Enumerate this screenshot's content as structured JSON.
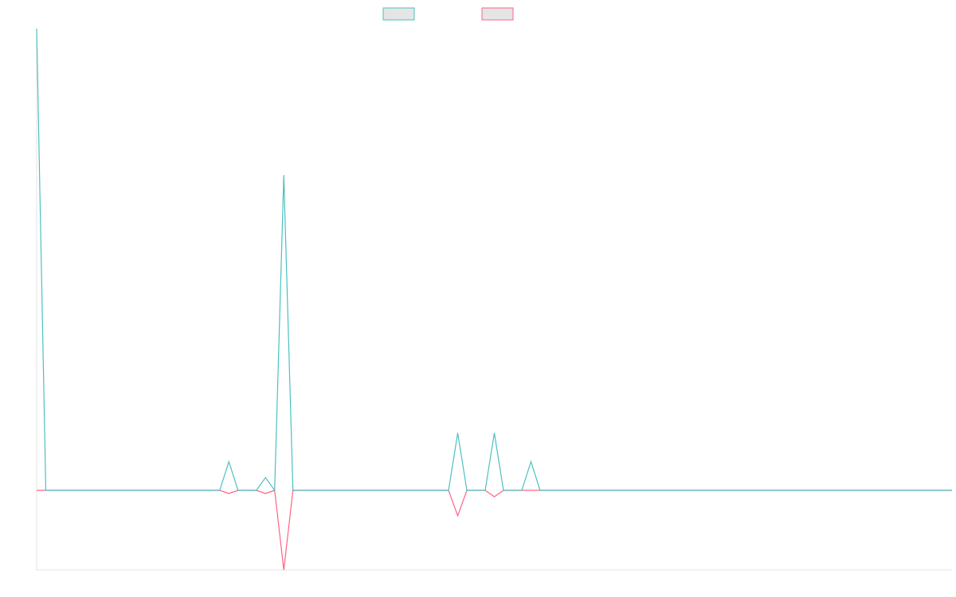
{
  "chart_data": {
    "type": "line",
    "title": "",
    "xlabel": "",
    "ylabel": "",
    "grid": false,
    "legend_position": "top-center",
    "x": [
      0,
      0.5,
      1,
      10,
      10.5,
      11,
      11.5,
      12,
      12.5,
      13,
      13.5,
      14,
      14.5,
      15,
      15.5,
      16,
      16.5,
      22.5,
      23,
      23.5,
      24,
      24.5,
      25,
      25.5,
      26,
      26.5,
      27,
      27.5,
      28,
      50
    ],
    "ylim": [
      -0.25,
      1.45
    ],
    "series": [
      {
        "color": "#4bc0c0",
        "fill": "#e5e5e5",
        "values": [
          1.45,
          0,
          0,
          0,
          0.09,
          0,
          0,
          0,
          0.04,
          0,
          0.99,
          0,
          0,
          0,
          0,
          0,
          0,
          0,
          0.18,
          0,
          0,
          0,
          0.18,
          0,
          0,
          0,
          0.09,
          0,
          0,
          0
        ]
      },
      {
        "color": "#ff6384",
        "fill": "#e5e5e5",
        "values": [
          0,
          0,
          0,
          0,
          -0.01,
          0,
          0,
          0,
          -0.01,
          0,
          -0.25,
          0,
          0,
          0,
          0,
          0,
          0,
          0,
          -0.08,
          0,
          0,
          0,
          -0.02,
          0,
          0,
          0,
          0,
          0,
          0,
          0
        ]
      }
    ]
  }
}
